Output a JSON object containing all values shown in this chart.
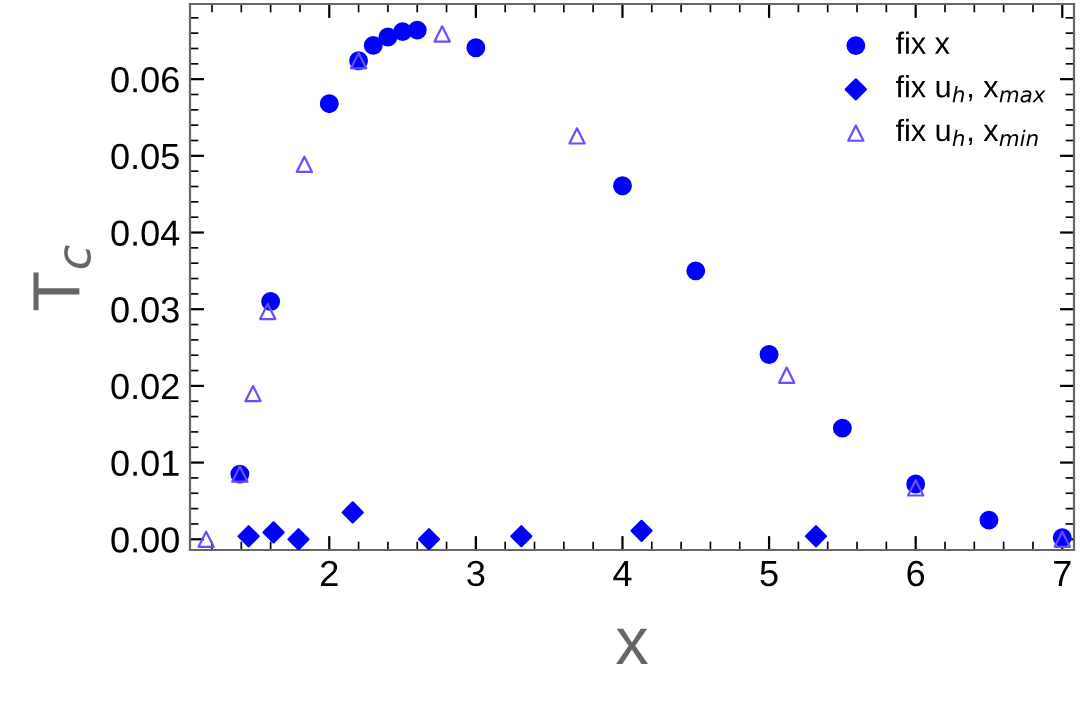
{
  "chart_data": {
    "type": "scatter",
    "xlabel": "x",
    "ylabel": "T$_{c}$",
    "xlim": [
      1.05,
      7.08
    ],
    "ylim": [
      -0.0014,
      0.0698
    ],
    "xticks": [
      2,
      3,
      4,
      5,
      6,
      7
    ],
    "yticks": [
      {
        "value": 0,
        "label": "0.00"
      },
      {
        "value": 0.01,
        "label": "0.01"
      },
      {
        "value": 0.02,
        "label": "0.02"
      },
      {
        "value": 0.03,
        "label": "0.03"
      },
      {
        "value": 0.04,
        "label": "0.04"
      },
      {
        "value": 0.05,
        "label": "0.05"
      },
      {
        "value": 0.06,
        "label": "0.06"
      }
    ],
    "grid": false,
    "legend": "top right",
    "series": [
      {
        "name": "fix x",
        "color": "#0000ff",
        "marker": "circle",
        "x": [
          1.39,
          1.6,
          2.0,
          2.2,
          2.3,
          2.4,
          2.5,
          2.6,
          3.0,
          4.0,
          4.5,
          5.0,
          5.5,
          6.0,
          6.5,
          7.0
        ],
        "values": [
          0.0085,
          0.031,
          0.0568,
          0.0624,
          0.0644,
          0.0655,
          0.0662,
          0.0664,
          0.0641,
          0.0461,
          0.035,
          0.0241,
          0.0145,
          0.0072,
          0.0025,
          0.0002
        ]
      },
      {
        "name": "fix u$_{h}$, x$_{max}$",
        "color": "#0000ff",
        "marker": "diamond",
        "x": [
          1.45,
          1.62,
          1.79,
          2.16,
          2.68,
          3.31,
          4.13,
          5.32
        ],
        "values": [
          0.0004,
          0.0009,
          0.0,
          0.0035,
          0.0,
          0.0004,
          0.0011,
          0.0004
        ]
      },
      {
        "name": "fix u$_{h}$, x$_{min}$",
        "color": "#6a4cff",
        "marker": "triangle",
        "x": [
          1.16,
          1.39,
          1.48,
          1.58,
          1.83,
          2.2,
          2.77,
          3.69,
          5.12,
          6.0,
          7.0
        ],
        "values": [
          0.0,
          0.0085,
          0.019,
          0.0297,
          0.0489,
          0.0624,
          0.0659,
          0.0526,
          0.0214,
          0.0067,
          0.0
        ]
      }
    ]
  }
}
